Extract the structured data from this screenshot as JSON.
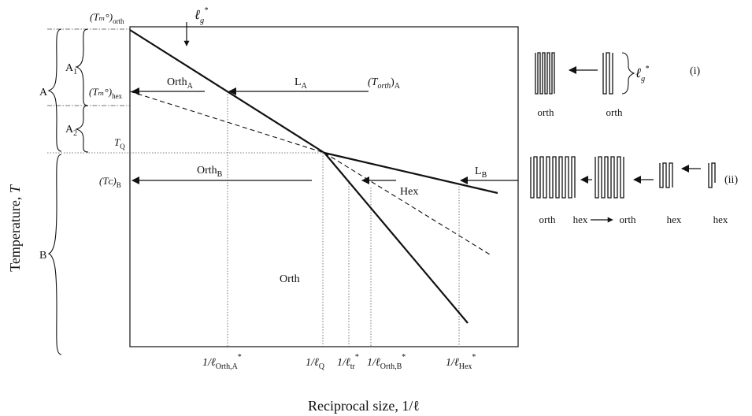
{
  "axes": {
    "y_title": "Temperature, ",
    "y_symbol": "T",
    "x_title": "Reciprocal size, 1/ℓ"
  },
  "y_labels": {
    "tm_orth": "(Tₘ°)",
    "tm_orth_sub": "orth",
    "tm_hex": "(Tₘ°)",
    "tm_hex_sub": "hex",
    "tq": "T",
    "tq_sub": "Q",
    "tc_b": "(Tᴄ)",
    "tc_b_sub": "B"
  },
  "x_labels": {
    "orth_a": "1/ℓ",
    "orth_a_sub": "Orth,A",
    "orth_a_sup": "*",
    "q": "1/ℓ",
    "q_sub": "Q",
    "tr": "1/ℓ",
    "tr_sub": "tr",
    "tr_sup": "*",
    "orth_b": "1/ℓ",
    "orth_b_sub": "Orth,B",
    "orth_b_sup": "*",
    "hex": "1/ℓ",
    "hex_sub": "Hex",
    "hex_sup": "*"
  },
  "braces": {
    "A": "A",
    "A1": "A",
    "A1_sub": "1",
    "A2": "A",
    "A2_sub": "2",
    "B": "B"
  },
  "plot_labels": {
    "lg": "ℓ",
    "lg_sub": "g",
    "lg_sup": "*",
    "orth_a": "Orth",
    "orth_a_sub": "A",
    "l_a": "L",
    "l_a_sub": "A",
    "t_orth_a": "(T",
    "t_orth_a_sub": "orth",
    "t_orth_a_end": ")",
    "t_orth_a_end_sub": "A",
    "orth_b": "Orth",
    "orth_b_sub": "B",
    "hex": "Hex",
    "l_b": "L",
    "l_b_sub": "B",
    "orth_region": "Orth"
  },
  "schematic": {
    "row_i_tag": "(i)",
    "row_i_brace_label": "ℓ",
    "row_i_brace_sub": "g",
    "row_i_brace_sup": "*",
    "row_i_labels": [
      "orth",
      "orth"
    ],
    "row_ii_tag": "(ii)",
    "row_ii_labels": [
      "orth",
      "hex",
      "orth",
      "hex",
      "hex"
    ]
  }
}
